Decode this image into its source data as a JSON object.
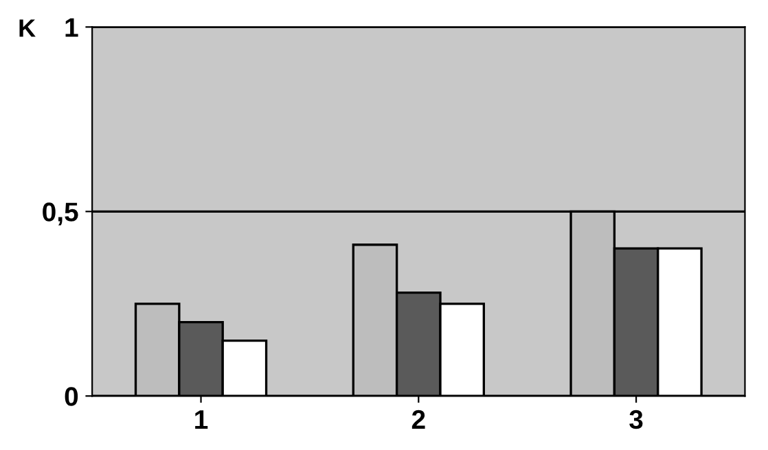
{
  "chart_data": {
    "type": "bar",
    "ylabel": "K",
    "categories": [
      "1",
      "2",
      "3"
    ],
    "series": [
      {
        "color": "#bdbdbd",
        "values": [
          0.25,
          0.41,
          0.5
        ]
      },
      {
        "color": "#5a5a5a",
        "values": [
          0.2,
          0.28,
          0.4
        ]
      },
      {
        "color": "#ffffff",
        "values": [
          0.15,
          0.25,
          0.4
        ]
      }
    ],
    "ylim": [
      0,
      1
    ],
    "yticks": [
      0,
      {
        "value": 0.5,
        "label": "0,5"
      },
      1
    ],
    "grid": "y",
    "legend": false
  }
}
